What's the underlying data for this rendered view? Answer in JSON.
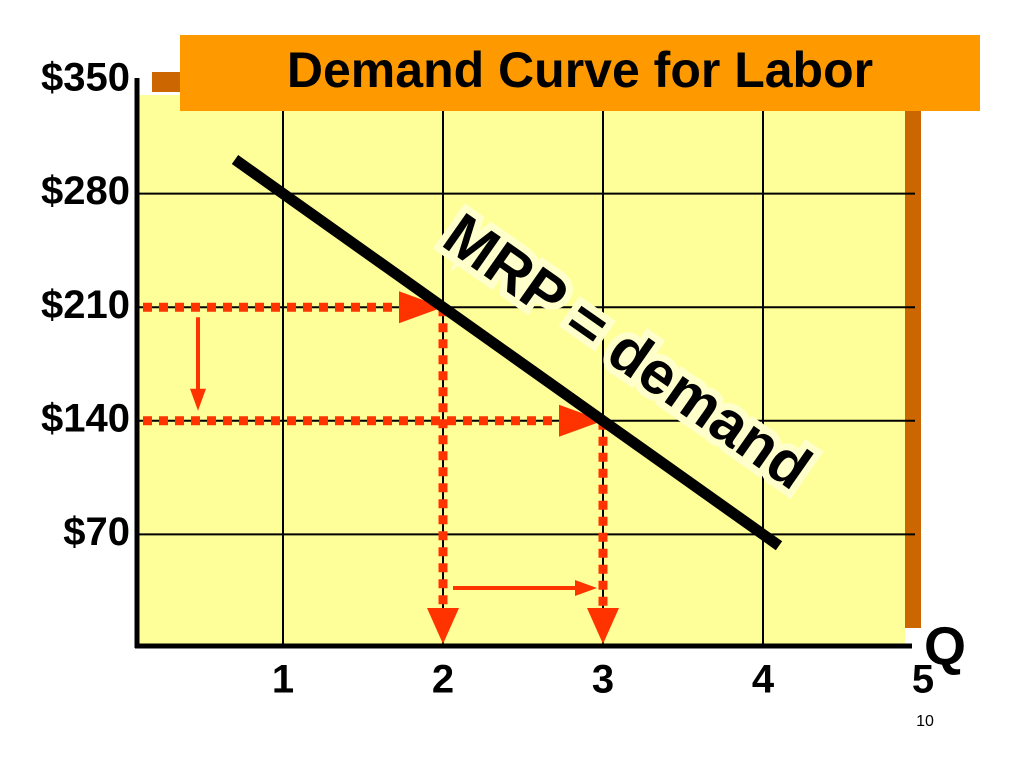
{
  "chart_data": {
    "type": "line",
    "title": "Demand Curve for Labor",
    "x_label": "Q",
    "annotation": "MRP = demand",
    "series": [
      {
        "name": "MRP",
        "color": "#000000",
        "x": [
          0.7,
          2,
          3,
          4.1
        ],
        "values": [
          301,
          210,
          140,
          63
        ]
      }
    ],
    "xlim": [
      0.1,
      5
    ],
    "xticks": [
      1,
      2,
      3,
      4,
      5
    ],
    "ylim": [
      0,
      350
    ],
    "yticks": [
      {
        "value": 70,
        "label": "$70"
      },
      {
        "value": 140,
        "label": "$140"
      },
      {
        "value": 210,
        "label": "$210"
      },
      {
        "value": 280,
        "label": "$280"
      },
      {
        "value": 350,
        "label": "$350"
      }
    ],
    "grid": true,
    "background": "#ffff99",
    "guide_color": "#ff3300"
  },
  "page_number": "10"
}
